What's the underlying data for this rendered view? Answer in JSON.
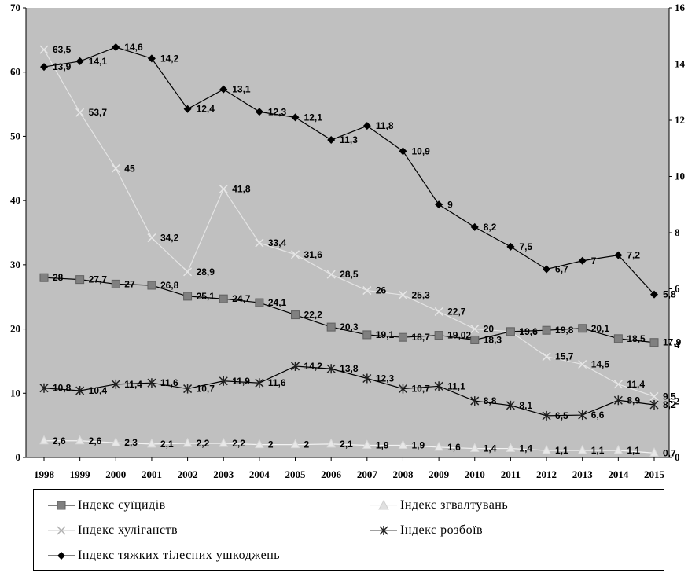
{
  "chart_data": {
    "type": "line",
    "title": "",
    "xlabel": "",
    "ylabel": "",
    "ylim_left": [
      0,
      70
    ],
    "ylim_right": [
      0,
      16
    ],
    "left_ticks": [
      "0",
      "10",
      "20",
      "30",
      "40",
      "50",
      "60",
      "70"
    ],
    "right_ticks": [
      "0",
      "2",
      "4",
      "6",
      "8",
      "10",
      "12",
      "14",
      "16"
    ],
    "categories": [
      "1998",
      "1999",
      "2000",
      "2001",
      "2002",
      "2003",
      "2004",
      "2005",
      "2006",
      "2007",
      "2008",
      "2009",
      "2010",
      "2011",
      "2012",
      "2013",
      "2014",
      "2015"
    ],
    "background": "#c0c0c0",
    "grid": false,
    "legend_position": "bottom",
    "series": [
      {
        "name": "Індекс суїцидів",
        "axis": "left",
        "marker": "square",
        "color": "#808080",
        "values": [
          28,
          27.7,
          27,
          26.8,
          25.1,
          24.7,
          24.1,
          22.2,
          20.3,
          19.1,
          18.7,
          19.02,
          18.3,
          19.6,
          19.8,
          20.1,
          18.5,
          17.9
        ],
        "labels": [
          "28",
          "27,7",
          "27",
          "26,8",
          "25,1",
          "24,7",
          "24,1",
          "22,2",
          "20,3",
          "19,1",
          "18,7",
          "19,02",
          "18,3",
          "19,6",
          "19,8",
          "20,1",
          "18,5",
          "17,9"
        ]
      },
      {
        "name": "Індекс згвалтувань",
        "axis": "left",
        "marker": "triangle",
        "color": "#e8e8e8",
        "values": [
          2.6,
          2.6,
          2.3,
          2.1,
          2.2,
          2.2,
          2,
          2,
          2.1,
          1.9,
          1.9,
          1.6,
          1.4,
          1.4,
          1.1,
          1.1,
          1.1,
          0.7
        ],
        "labels": [
          "2,6",
          "2,6",
          "2,3",
          "2,1",
          "2,2",
          "2,2",
          "2",
          "2",
          "2,1",
          "1,9",
          "1,9",
          "1,6",
          "1,4",
          "1,4",
          "1,1",
          "1,1",
          "1,1",
          "0,7"
        ]
      },
      {
        "name": "Індекс хуліганств",
        "axis": "left",
        "marker": "x",
        "color": "#e0e0e0",
        "values": [
          63.5,
          53.7,
          45,
          34.2,
          28.9,
          41.8,
          33.4,
          31.6,
          28.5,
          26,
          25.3,
          22.7,
          20,
          19.6,
          15.7,
          14.5,
          11.4,
          9.5
        ],
        "labels": [
          "63,5",
          "53,7",
          "45",
          "34,2",
          "28,9",
          "41,8",
          "33,4",
          "31,6",
          "28,5",
          "26",
          "25,3",
          "22,7",
          "20",
          "19,6",
          "15,7",
          "14,5",
          "11,4",
          "9,5"
        ]
      },
      {
        "name": "Індекс розбоїв",
        "axis": "left",
        "marker": "asterisk",
        "color": "#404040",
        "values": [
          10.8,
          10.4,
          11.4,
          11.6,
          10.7,
          11.9,
          11.6,
          14.2,
          13.8,
          12.3,
          10.7,
          11.1,
          8.8,
          8.1,
          6.5,
          6.6,
          8.9,
          8.2
        ],
        "labels": [
          "10,8",
          "10,4",
          "11,4",
          "11,6",
          "10,7",
          "11,9",
          "11,6",
          "14,2",
          "13,8",
          "12,3",
          "10,7",
          "11,1",
          "8,8",
          "8,1",
          "6,5",
          "6,6",
          "8,9",
          "8,2"
        ]
      },
      {
        "name": "Індекс тяжких тілесних ушкоджень",
        "axis": "right",
        "marker": "diamond",
        "color": "#000000",
        "values": [
          13.9,
          14.1,
          14.6,
          14.2,
          12.4,
          13.1,
          12.3,
          12.1,
          11.3,
          11.8,
          10.9,
          9,
          8.2,
          7.5,
          6.7,
          7,
          7.2,
          5.8
        ],
        "labels": [
          "13,9",
          "14,1",
          "14,6",
          "14,2",
          "12,4",
          "13,1",
          "12,3",
          "12,1",
          "11,3",
          "11,8",
          "10,9",
          "9",
          "8,2",
          "7,5",
          "6,7",
          "7",
          "7,2",
          "5,8"
        ]
      }
    ]
  }
}
